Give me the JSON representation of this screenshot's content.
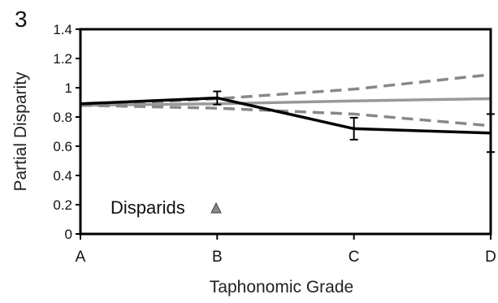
{
  "panel_label": "3",
  "chart_data": {
    "type": "line",
    "title": "",
    "xlabel": "Taphonomic Grade",
    "ylabel": "Partial Disparity",
    "categories": [
      "A",
      "B",
      "C",
      "D"
    ],
    "ylim": [
      0,
      1.4
    ],
    "yticks": [
      "0",
      "0.2",
      "0.4",
      "0.6",
      "0.8",
      "1",
      "1.2",
      "1.4"
    ],
    "grid": false,
    "annotation": "Disparids",
    "annotation_marker": "triangle",
    "series": [
      {
        "role": "observed",
        "style": "solid",
        "color": "#000000",
        "values": [
          0.89,
          0.93,
          0.72,
          0.69
        ],
        "error": [
          0.04,
          0.045,
          0.075,
          0.13
        ]
      },
      {
        "role": "expected",
        "style": "solid",
        "color": "#999999",
        "values": [
          0.88,
          0.89,
          0.91,
          0.925
        ]
      },
      {
        "role": "upper-bound",
        "style": "dashed",
        "color": "#888888",
        "values": [
          0.88,
          0.925,
          0.99,
          1.09
        ]
      },
      {
        "role": "lower-bound",
        "style": "dashed",
        "color": "#888888",
        "values": [
          0.88,
          0.86,
          0.82,
          0.74
        ]
      }
    ]
  }
}
